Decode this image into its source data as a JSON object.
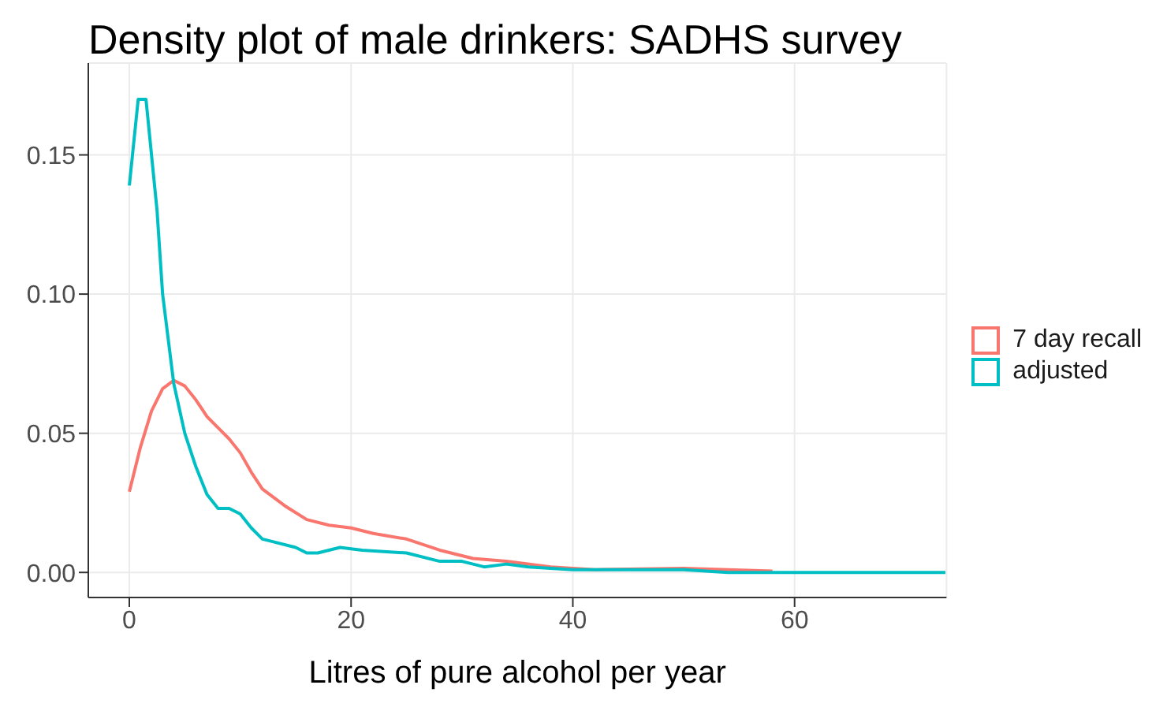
{
  "chart_data": {
    "type": "line",
    "title": "Density plot of male drinkers: SADHS survey",
    "xlabel": "Litres of pure alcohol per year",
    "xlim": [
      -3.7,
      73.7
    ],
    "xticks": [
      0,
      20,
      40,
      60
    ],
    "ylim": [
      -0.009,
      0.183
    ],
    "yticks": [
      {
        "value": 0,
        "label": "0.00"
      },
      {
        "value": 0.05,
        "label": "0.05"
      },
      {
        "value": 0.1,
        "label": "0.10"
      },
      {
        "value": 0.15,
        "label": "0.15"
      }
    ],
    "grid": true,
    "legend": "right",
    "marker": "none",
    "line_style": "solid",
    "series": [
      {
        "name": "7 day recall",
        "color": "#f8766d",
        "x": [
          0,
          1,
          2,
          3,
          4,
          5,
          6,
          7,
          8,
          9,
          10,
          11,
          12,
          14,
          16,
          18,
          20,
          22,
          25,
          28,
          31,
          34,
          38,
          42,
          50,
          58
        ],
        "values": [
          0.029,
          0.045,
          0.058,
          0.066,
          0.069,
          0.067,
          0.062,
          0.056,
          0.052,
          0.048,
          0.043,
          0.036,
          0.03,
          0.024,
          0.019,
          0.017,
          0.016,
          0.014,
          0.012,
          0.008,
          0.005,
          0.004,
          0.002,
          0.001,
          0.0015,
          0.0005
        ]
      },
      {
        "name": "adjusted",
        "color": "#00bfc4",
        "x": [
          0,
          0.8,
          1.5,
          2.5,
          3,
          4,
          5,
          6,
          7,
          8,
          9,
          10,
          11,
          12,
          13,
          15,
          16,
          17,
          19,
          21,
          25,
          28,
          30,
          32,
          34,
          36,
          40,
          50,
          54,
          73.6
        ],
        "values": [
          0.139,
          0.17,
          0.17,
          0.13,
          0.1,
          0.068,
          0.05,
          0.038,
          0.028,
          0.023,
          0.023,
          0.021,
          0.016,
          0.012,
          0.011,
          0.009,
          0.007,
          0.007,
          0.009,
          0.008,
          0.007,
          0.004,
          0.004,
          0.002,
          0.003,
          0.002,
          0.001,
          0.001,
          0,
          0
        ]
      }
    ]
  }
}
